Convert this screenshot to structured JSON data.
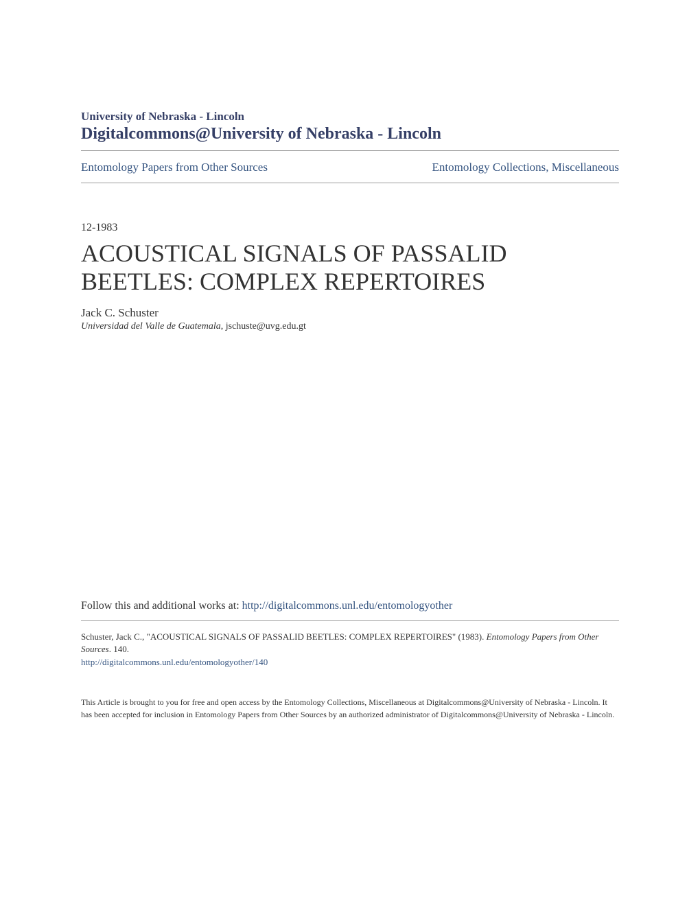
{
  "header": {
    "institution": "University of Nebraska - Lincoln",
    "repository": "Digitalcommons@University of Nebraska - Lincoln"
  },
  "nav": {
    "left": "Entomology Papers from Other Sources",
    "right": "Entomology Collections, Miscellaneous"
  },
  "article": {
    "date": "12-1983",
    "title": "ACOUSTICAL SIGNALS OF PASSALID BEETLES: COMPLEX REPERTOIRES",
    "author": "Jack C. Schuster",
    "affiliation_institution": "Universidad del Valle de Guatemala",
    "affiliation_email": ", jschuste@uvg.edu.gt"
  },
  "follow": {
    "text": "Follow this and additional works at: ",
    "url": "http://digitalcommons.unl.edu/entomologyother"
  },
  "citation": {
    "prefix": "Schuster, Jack C., \"ACOUSTICAL SIGNALS OF PASSALID BEETLES: COMPLEX REPERTOIRES\" (1983). ",
    "series": "Entomology Papers from Other Sources",
    "suffix": ". 140.",
    "url": "http://digitalcommons.unl.edu/entomologyother/140"
  },
  "access": "This Article is brought to you for free and open access by the Entomology Collections, Miscellaneous at Digitalcommons@University of Nebraska - Lincoln. It has been accepted for inclusion in Entomology Papers from Other Sources by an authorized administrator of Digitalcommons@University of Nebraska - Lincoln.",
  "colors": {
    "link": "#355480",
    "heading": "#353f66",
    "text": "#333333",
    "divider": "#999999",
    "background": "#ffffff"
  }
}
